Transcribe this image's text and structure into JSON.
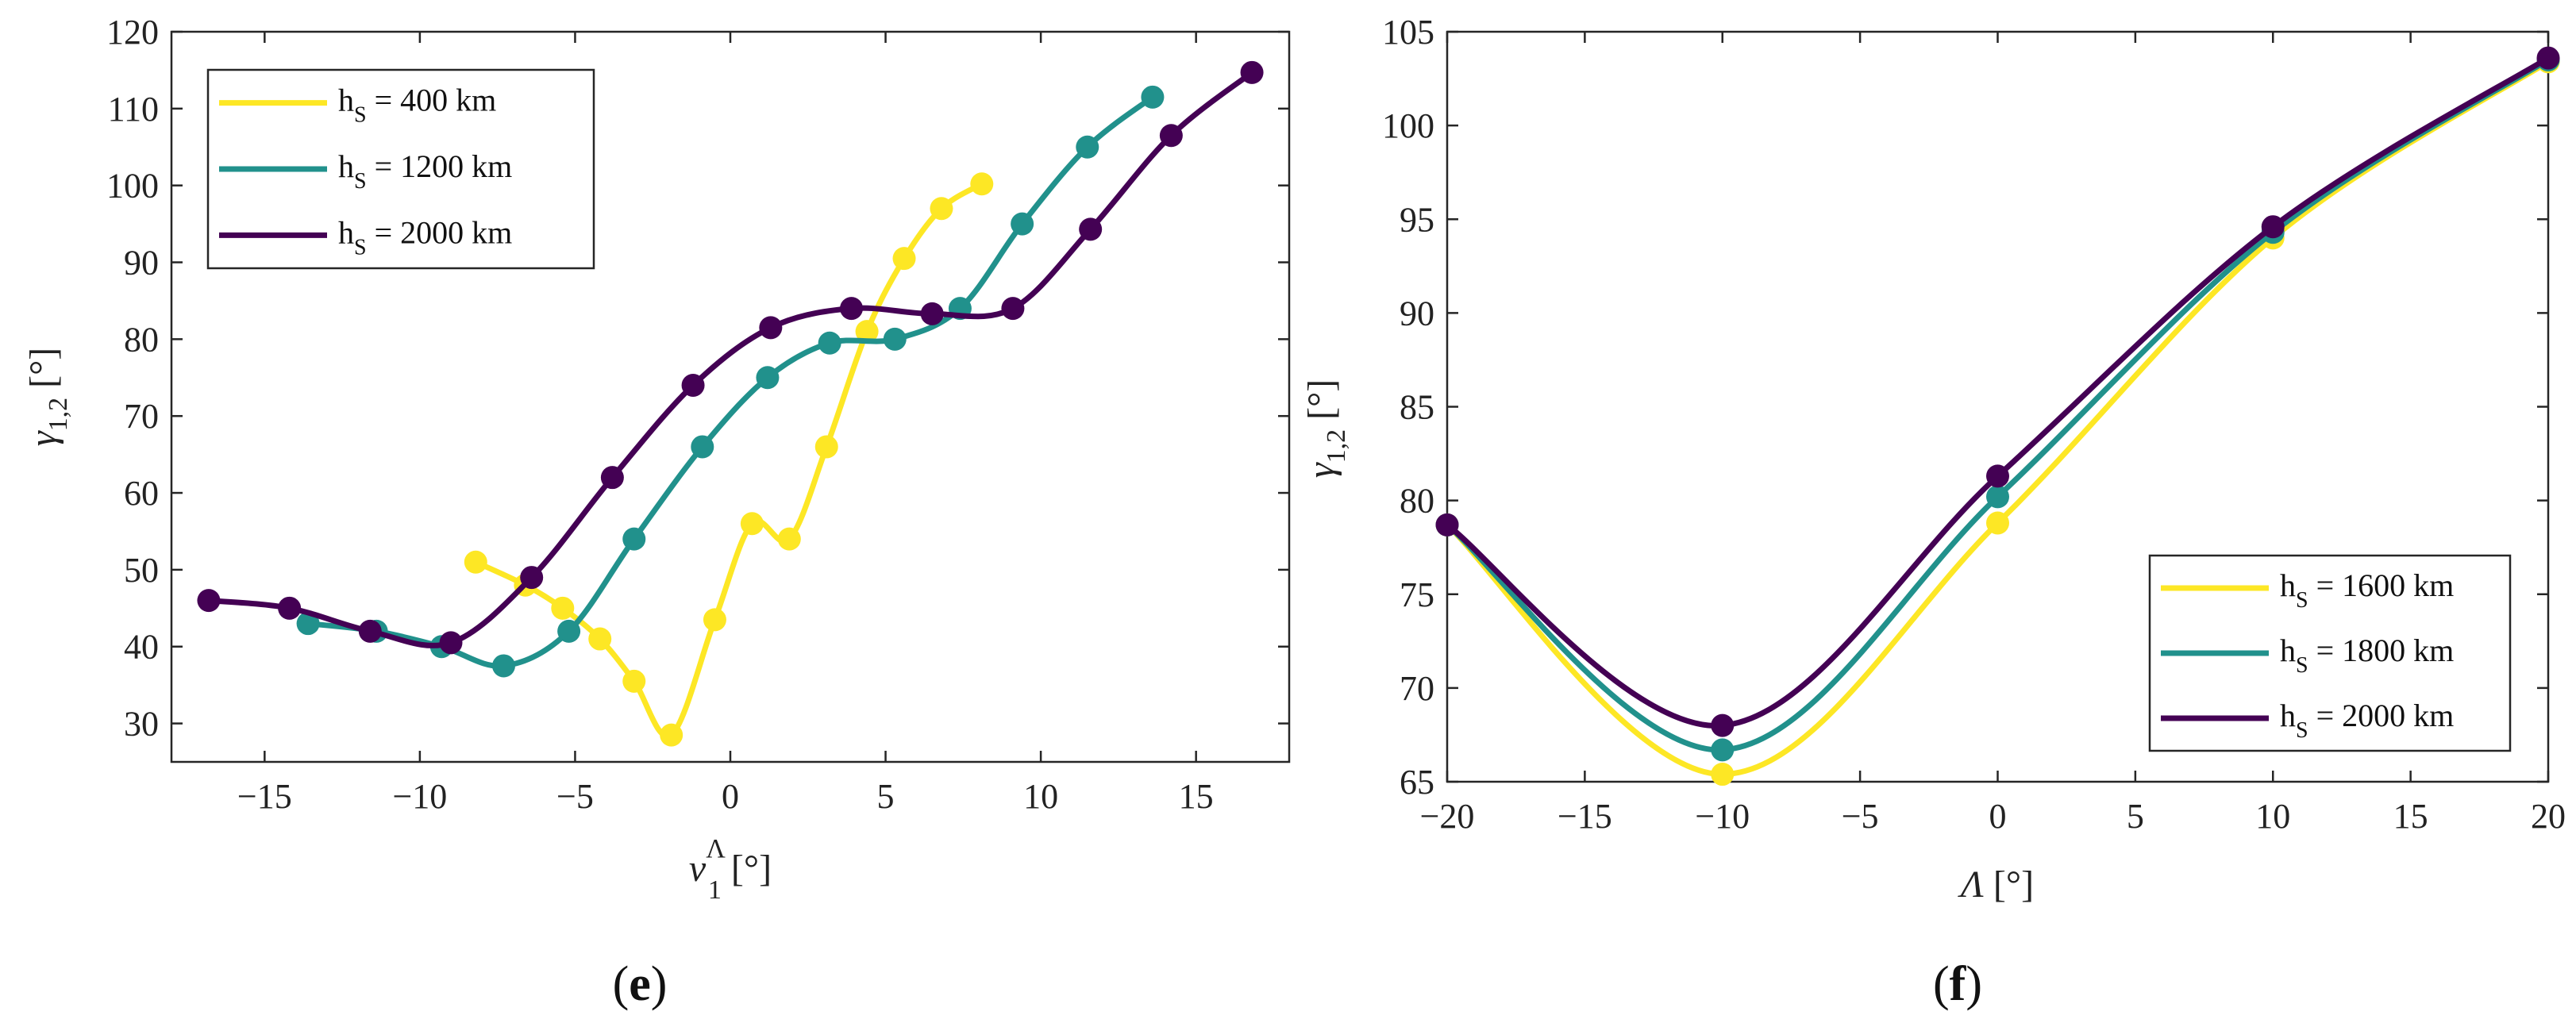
{
  "chart_data": [
    {
      "id": "e",
      "type": "line",
      "panel_label_open": "(",
      "panel_label_letter": "e",
      "panel_label_close": ")",
      "xlabel": "ν",
      "xlabel_sub": "1",
      "xlabel_sup": "Λ",
      "xlabel_unit": " [°]",
      "ylabel": "γ",
      "ylabel_sub": "1,2",
      "ylabel_unit": " [°]",
      "xlim": [
        -18,
        18
      ],
      "ylim": [
        25,
        120
      ],
      "xticks": [
        -15,
        -10,
        -5,
        0,
        5,
        10,
        15
      ],
      "xtick_labels": [
        "−15",
        "−10",
        "−5",
        "0",
        "5",
        "10",
        "15"
      ],
      "yticks": [
        30,
        40,
        50,
        60,
        70,
        80,
        90,
        100,
        110,
        120
      ],
      "ytick_labels": [
        "30",
        "40",
        "50",
        "60",
        "70",
        "80",
        "90",
        "100",
        "110",
        "120"
      ],
      "legend_position": "top-left",
      "series": [
        {
          "name": "hS = 400 km",
          "legend_main": "h",
          "legend_sub": "S",
          "legend_rest": " = 400 km",
          "color": "#fde725",
          "points": [
            [
              -8.2,
              51
            ],
            [
              -6.6,
              48
            ],
            [
              -5.4,
              45
            ],
            [
              -4.2,
              41
            ],
            [
              -3.1,
              35.5
            ],
            [
              -1.9,
              28.5
            ],
            [
              -0.5,
              43.5
            ],
            [
              0.7,
              56
            ],
            [
              1.9,
              54
            ],
            [
              3.1,
              66
            ],
            [
              4.4,
              81
            ],
            [
              5.6,
              90.5
            ],
            [
              6.8,
              97
            ],
            [
              8.1,
              100.2
            ]
          ]
        },
        {
          "name": "hS = 1200 km",
          "legend_main": "h",
          "legend_sub": "S",
          "legend_rest": " = 1200 km",
          "color": "#21918c",
          "points": [
            [
              -13.6,
              43
            ],
            [
              -11.4,
              42
            ],
            [
              -9.3,
              40
            ],
            [
              -7.3,
              37.5
            ],
            [
              -5.2,
              42
            ],
            [
              -3.1,
              54
            ],
            [
              -0.9,
              66
            ],
            [
              1.2,
              75
            ],
            [
              3.2,
              79.5
            ],
            [
              5.3,
              80
            ],
            [
              7.4,
              84
            ],
            [
              9.4,
              95
            ],
            [
              11.5,
              105
            ],
            [
              13.6,
              111.5
            ]
          ]
        },
        {
          "name": "hS = 2000 km",
          "legend_main": "h",
          "legend_sub": "S",
          "legend_rest": " = 2000 km",
          "color": "#440154",
          "points": [
            [
              -16.8,
              46
            ],
            [
              -14.2,
              45
            ],
            [
              -11.6,
              42
            ],
            [
              -9.0,
              40.5
            ],
            [
              -6.4,
              49
            ],
            [
              -3.8,
              62
            ],
            [
              -1.2,
              74
            ],
            [
              1.3,
              81.5
            ],
            [
              3.9,
              84
            ],
            [
              6.5,
              83.3
            ],
            [
              9.1,
              84
            ],
            [
              11.6,
              94.3
            ],
            [
              14.2,
              106.5
            ],
            [
              16.8,
              114.7
            ]
          ]
        }
      ]
    },
    {
      "id": "f",
      "type": "line",
      "panel_label_open": "(",
      "panel_label_letter": "f",
      "panel_label_close": ")",
      "xlabel": "Λ",
      "xlabel_sub": "",
      "xlabel_sup": "",
      "xlabel_unit": " [°]",
      "ylabel": "γ",
      "ylabel_sub": "1,2",
      "ylabel_unit": " [°]",
      "xlim": [
        -20,
        20
      ],
      "ylim": [
        65,
        105
      ],
      "xticks": [
        -20,
        -15,
        -10,
        -5,
        0,
        5,
        10,
        15,
        20
      ],
      "xtick_labels": [
        "−20",
        "−15",
        "−10",
        "−5",
        "0",
        "5",
        "10",
        "15",
        "20"
      ],
      "yticks": [
        65,
        70,
        75,
        80,
        85,
        90,
        95,
        100,
        105
      ],
      "ytick_labels": [
        "65",
        "70",
        "75",
        "80",
        "85",
        "90",
        "95",
        "100",
        "105"
      ],
      "legend_position": "bottom-right",
      "series": [
        {
          "name": "hS = 1600 km",
          "legend_main": "h",
          "legend_sub": "S",
          "legend_rest": " = 1600 km",
          "color": "#fde725",
          "points": [
            [
              -20,
              78.7
            ],
            [
              -10,
              65.4
            ],
            [
              0,
              78.8
            ],
            [
              10,
              94.0
            ],
            [
              20,
              103.4
            ]
          ]
        },
        {
          "name": "hS = 1800 km",
          "legend_main": "h",
          "legend_sub": "S",
          "legend_rest": " = 1800 km",
          "color": "#21918c",
          "points": [
            [
              -20,
              78.7
            ],
            [
              -10,
              66.7
            ],
            [
              0,
              80.2
            ],
            [
              10,
              94.3
            ],
            [
              20,
              103.5
            ]
          ]
        },
        {
          "name": "hS = 2000 km",
          "legend_main": "h",
          "legend_sub": "S",
          "legend_rest": " = 2000 km",
          "color": "#440154",
          "points": [
            [
              -20,
              78.7
            ],
            [
              -10,
              68.0
            ],
            [
              0,
              81.3
            ],
            [
              10,
              94.6
            ],
            [
              20,
              103.6
            ]
          ]
        }
      ]
    }
  ]
}
